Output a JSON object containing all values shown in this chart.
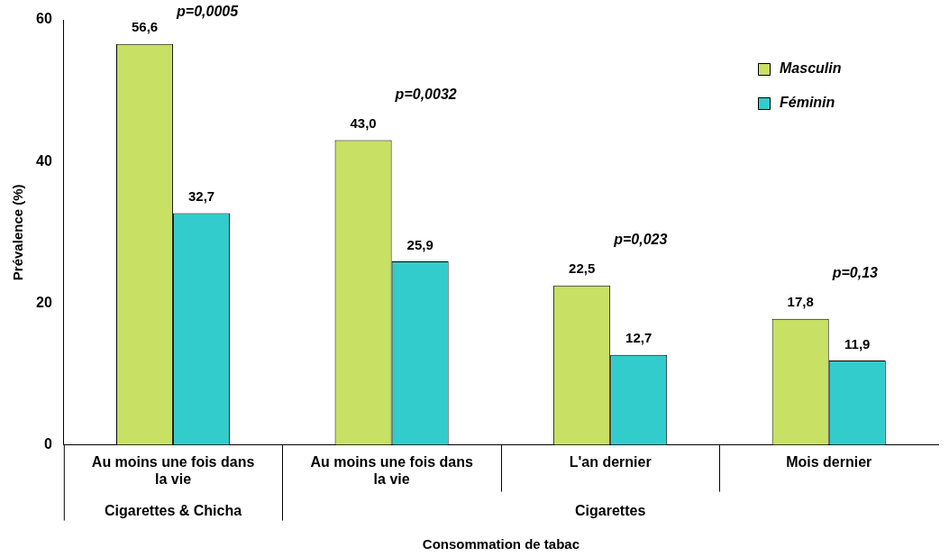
{
  "chart_data": {
    "type": "bar",
    "xlabel": "Consommation de tabac",
    "ylabel": "Prévalence (%)",
    "categories": [
      "Au moins une fois dans la vie",
      "Au moins une fois dans la vie",
      "L'an dernier",
      "Mois dernier"
    ],
    "series": [
      {
        "name": "Masculin",
        "color": "#c8e064",
        "values": [
          56.6,
          43.0,
          22.5,
          17.8
        ],
        "value_labels": [
          "56,6",
          "43,0",
          "22,5",
          "17,8"
        ]
      },
      {
        "name": "Féminin",
        "color": "#33cccc",
        "values": [
          32.7,
          25.9,
          12.7,
          11.9
        ],
        "value_labels": [
          "32,7",
          "25,9",
          "12,7",
          "11,9"
        ]
      }
    ],
    "ylim": [
      0,
      60
    ],
    "yticks": [
      0,
      20,
      40,
      60
    ],
    "grid": false,
    "legend": "top right",
    "annotations": [
      "p=0,0005",
      "p=0,0032",
      "p=0,023",
      "p=0,13",
      "Cigarettes & Chicha",
      "Cigarettes"
    ]
  }
}
